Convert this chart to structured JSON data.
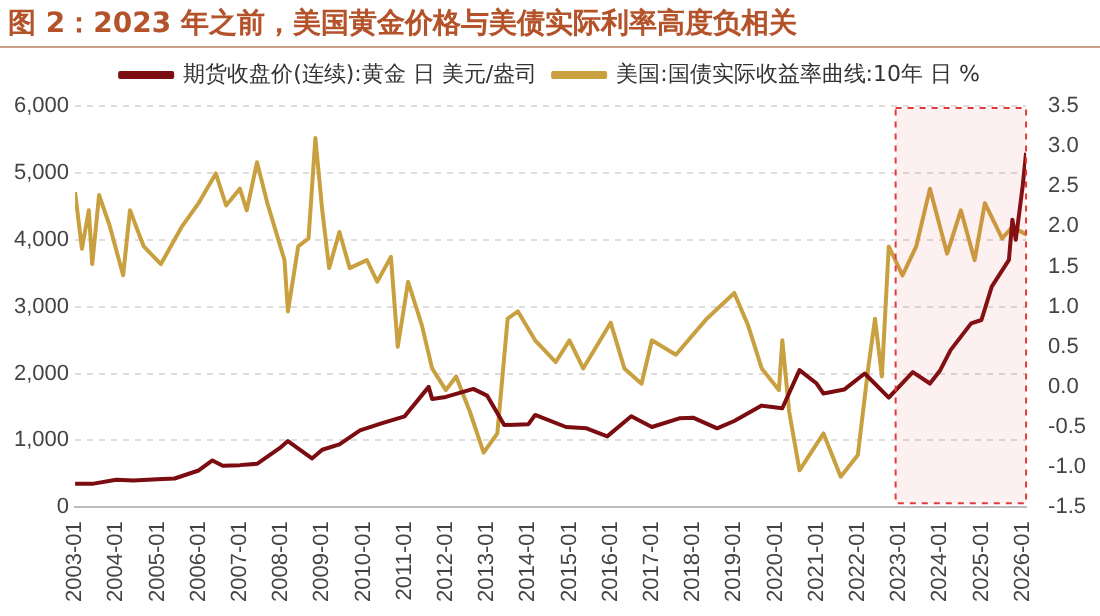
{
  "chart_data": {
    "type": "line",
    "title": "图 2：2023 年之前，美国黄金价格与美债实际利率高度负相关",
    "series": [
      {
        "name": "期货收盘价(连续):黄金 日 美元/盎司",
        "color": "#7b0c10",
        "x": [
          "2003-01",
          "2003-06",
          "2004-01",
          "2004-06",
          "2005-01",
          "2005-06",
          "2006-01",
          "2006-05",
          "2006-08",
          "2007-01",
          "2007-06",
          "2008-01",
          "2008-03",
          "2008-10",
          "2009-01",
          "2009-06",
          "2009-12",
          "2010-06",
          "2011-01",
          "2011-08",
          "2011-09",
          "2012-01",
          "2012-09",
          "2013-01",
          "2013-06",
          "2014-01",
          "2014-03",
          "2014-12",
          "2015-06",
          "2015-12",
          "2016-07",
          "2017-01",
          "2017-09",
          "2018-01",
          "2018-08",
          "2019-01",
          "2019-09",
          "2020-03",
          "2020-08",
          "2021-01",
          "2021-03",
          "2021-09",
          "2022-03",
          "2022-10",
          "2023-05",
          "2023-10",
          "2024-01",
          "2024-04",
          "2024-10",
          "2025-01",
          "2025-04",
          "2025-09",
          "2025-10",
          "2025-11",
          "2026-01",
          "2026-02"
        ],
        "values": [
          350,
          350,
          410,
          400,
          420,
          430,
          550,
          700,
          620,
          630,
          650,
          900,
          990,
          730,
          860,
          940,
          1150,
          1250,
          1360,
          1800,
          1620,
          1650,
          1770,
          1670,
          1230,
          1240,
          1380,
          1200,
          1180,
          1060,
          1360,
          1200,
          1330,
          1340,
          1180,
          1290,
          1520,
          1480,
          2050,
          1850,
          1700,
          1760,
          2000,
          1640,
          2020,
          1850,
          2050,
          2350,
          2750,
          2800,
          3300,
          3700,
          4300,
          4000,
          4800,
          5300
        ]
      },
      {
        "name": "美国:国债实际收益率曲线:10年 日 %",
        "color": "#c9a040",
        "axis": "y2",
        "x": [
          "2003-01",
          "2003-03",
          "2003-05",
          "2003-06",
          "2003-08",
          "2003-11",
          "2004-03",
          "2004-05",
          "2004-09",
          "2005-02",
          "2005-08",
          "2006-01",
          "2006-06",
          "2006-09",
          "2007-01",
          "2007-03",
          "2007-06",
          "2007-09",
          "2008-02",
          "2008-03",
          "2008-06",
          "2008-09",
          "2008-11",
          "2009-01",
          "2009-03",
          "2009-06",
          "2009-09",
          "2010-02",
          "2010-05",
          "2010-09",
          "2010-11",
          "2011-02",
          "2011-06",
          "2011-09",
          "2012-01",
          "2012-04",
          "2012-08",
          "2012-12",
          "2013-04",
          "2013-07",
          "2013-10",
          "2014-03",
          "2014-09",
          "2015-01",
          "2015-05",
          "2016-01",
          "2016-05",
          "2016-10",
          "2017-01",
          "2017-08",
          "2018-05",
          "2019-01",
          "2019-05",
          "2019-09",
          "2020-02",
          "2020-03",
          "2020-05",
          "2020-08",
          "2021-03",
          "2021-08",
          "2022-01",
          "2022-04",
          "2022-06",
          "2022-08",
          "2022-10",
          "2023-02",
          "2023-06",
          "2023-10",
          "2024-03",
          "2024-07",
          "2024-11",
          "2025-02",
          "2025-07",
          "2025-10",
          "2026-02"
        ],
        "values": [
          2.43,
          1.72,
          2.2,
          1.53,
          2.39,
          2.02,
          1.39,
          2.2,
          1.75,
          1.53,
          1.99,
          2.29,
          2.66,
          2.26,
          2.47,
          2.2,
          2.8,
          2.29,
          1.58,
          0.94,
          1.75,
          1.85,
          3.1,
          2.2,
          1.48,
          1.93,
          1.48,
          1.58,
          1.31,
          1.62,
          0.5,
          1.31,
          0.77,
          0.23,
          -0.04,
          0.13,
          -0.31,
          -0.82,
          -0.58,
          0.85,
          0.94,
          0.58,
          0.31,
          0.58,
          0.23,
          0.8,
          0.23,
          0.04,
          0.58,
          0.4,
          0.85,
          1.17,
          0.77,
          0.23,
          -0.04,
          0.58,
          -0.31,
          -1.04,
          -0.58,
          -1.12,
          -0.85,
          0.23,
          0.85,
          0.13,
          1.75,
          1.39,
          1.75,
          2.47,
          1.66,
          2.2,
          1.58,
          2.29,
          1.85,
          1.99,
          1.9
        ]
      }
    ],
    "xlim": [
      "2003-01",
      "2026-02"
    ],
    "xticks": [
      {
        "value": "2003-01",
        "label": "2003-01"
      },
      {
        "value": "2004-01",
        "label": "2004-01"
      },
      {
        "value": "2005-01",
        "label": "2005-01"
      },
      {
        "value": "2006-01",
        "label": "2006-01"
      },
      {
        "value": "2007-01",
        "label": "2007-01"
      },
      {
        "value": "2008-01",
        "label": "2008-01"
      },
      {
        "value": "2009-01",
        "label": "2009-01"
      },
      {
        "value": "2010-01",
        "label": "2010-01"
      },
      {
        "value": "2011-01",
        "label": "2011-01"
      },
      {
        "value": "2012-01",
        "label": "2012-01"
      },
      {
        "value": "2013-01",
        "label": "2013-01"
      },
      {
        "value": "2014-01",
        "label": "2014-01"
      },
      {
        "value": "2015-01",
        "label": "2015-01"
      },
      {
        "value": "2016-01",
        "label": "2016-01"
      },
      {
        "value": "2017-01",
        "label": "2017-01"
      },
      {
        "value": "2018-01",
        "label": "2018-01"
      },
      {
        "value": "2019-01",
        "label": "2019-01"
      },
      {
        "value": "2020-01",
        "label": "2020-01"
      },
      {
        "value": "2021-01",
        "label": "2021-01"
      },
      {
        "value": "2022-01",
        "label": "2022-01"
      },
      {
        "value": "2023-01",
        "label": "2023-01"
      },
      {
        "value": "2024-01",
        "label": "2024-01"
      },
      {
        "value": "2025-01",
        "label": "2025-01"
      },
      {
        "value": "2026-01",
        "label": "2026-01"
      }
    ],
    "ylim": [
      0,
      6000
    ],
    "yticks": [
      {
        "value": 0,
        "label": "0"
      },
      {
        "value": 1000,
        "label": "1,000"
      },
      {
        "value": 2000,
        "label": "2,000"
      },
      {
        "value": 3000,
        "label": "3,000"
      },
      {
        "value": 4000,
        "label": "4,000"
      },
      {
        "value": 5000,
        "label": "5,000"
      },
      {
        "value": 6000,
        "label": "6,000"
      }
    ],
    "y2lim": [
      -1.5,
      3.5
    ],
    "y2ticks": [
      {
        "value": -1.5,
        "label": "-1.5"
      },
      {
        "value": -1,
        "label": "-1.0"
      },
      {
        "value": -0.5,
        "label": "-0.5"
      },
      {
        "value": 0,
        "label": "0.0"
      },
      {
        "value": 0.5,
        "label": "0.5"
      },
      {
        "value": 1,
        "label": "1.0"
      },
      {
        "value": 1.5,
        "label": "1.5"
      },
      {
        "value": 2,
        "label": "2.0"
      },
      {
        "value": 2.5,
        "label": "2.5"
      },
      {
        "value": 3,
        "label": "3.0"
      },
      {
        "value": 3.5,
        "label": "3.5"
      }
    ],
    "bands": [
      {
        "axis": "x",
        "from": "2022-12",
        "to": "2026-02",
        "color": "#e03c3c"
      }
    ],
    "grid": "y",
    "legend": "top",
    "marker": "none",
    "line_style": "solid"
  }
}
